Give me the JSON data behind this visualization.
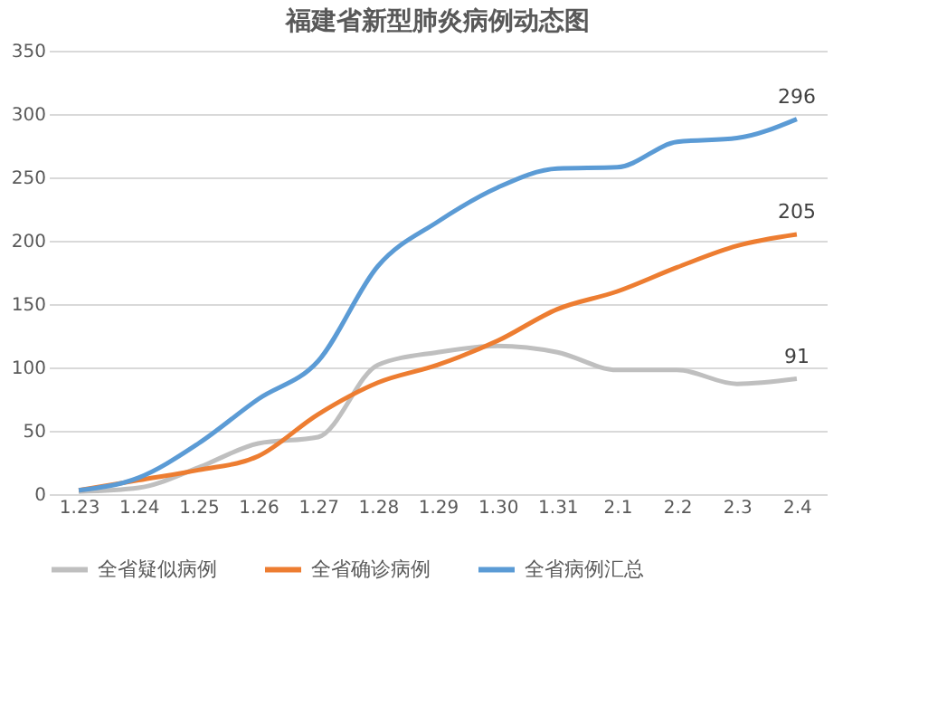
{
  "chart_data": {
    "type": "line",
    "title": "福建省新型肺炎病例动态图",
    "categories": [
      "1.23",
      "1.24",
      "1.25",
      "1.26",
      "1.27",
      "1.28",
      "1.29",
      "1.30",
      "1.31",
      "2.1",
      "2.2",
      "2.3",
      "2.4"
    ],
    "series": [
      {
        "name": "全省疑似病例",
        "color": "#bfbfbf",
        "values": [
          2,
          5,
          21,
          40,
          45,
          102,
          112,
          117,
          112,
          98,
          98,
          87,
          91
        ],
        "value_labels": [
          null,
          null,
          null,
          null,
          null,
          null,
          null,
          null,
          null,
          null,
          null,
          null,
          "91"
        ]
      },
      {
        "name": "全省确诊病例",
        "color": "#ed7d31",
        "values": [
          3,
          11,
          19,
          30,
          63,
          88,
          102,
          121,
          146,
          160,
          179,
          196,
          205
        ],
        "value_labels": [
          null,
          null,
          null,
          null,
          null,
          null,
          null,
          null,
          null,
          null,
          null,
          null,
          "205"
        ]
      },
      {
        "name": "全省病例汇总",
        "color": "#5b9bd5",
        "values": [
          3,
          13,
          40,
          75,
          105,
          180,
          215,
          242,
          257,
          258,
          278,
          281,
          296
        ],
        "value_labels": [
          null,
          null,
          null,
          null,
          null,
          null,
          null,
          null,
          null,
          null,
          null,
          null,
          "296"
        ]
      }
    ],
    "ylim": [
      0,
      350
    ],
    "yticks": [
      0,
      50,
      100,
      150,
      200,
      250,
      300,
      350
    ],
    "grid": "y",
    "legend": "bottom",
    "marker": "none",
    "line_style": "solid"
  }
}
